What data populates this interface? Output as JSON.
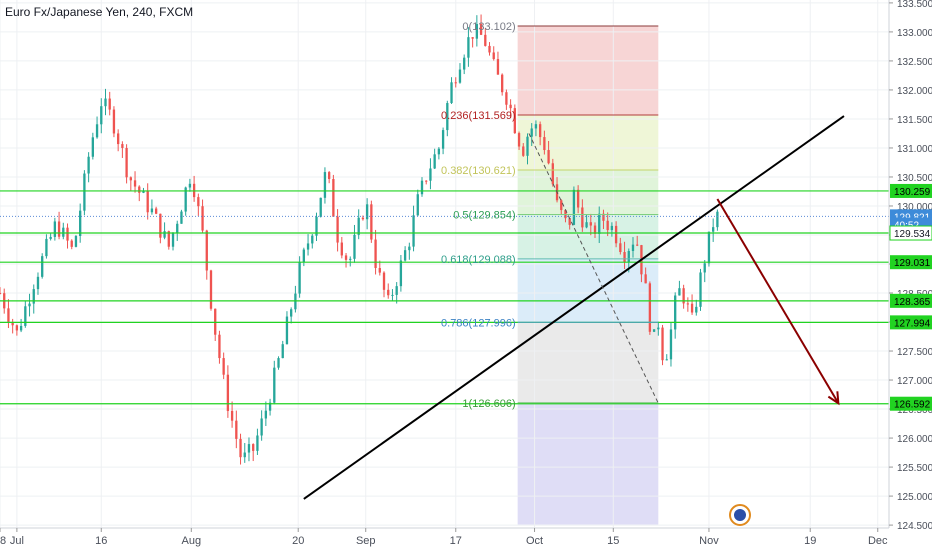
{
  "header": {
    "title": "Euro Fx/Japanese Yen, 240, FXCM"
  },
  "colors": {
    "up": "#26a69a",
    "down": "#ef5350",
    "hline": "#21d321",
    "trend": "#000000",
    "arrow": "#8b0000",
    "price_line": "#5b8bd6"
  },
  "chart_data": {
    "type": "candlestick",
    "title": "Euro Fx/Japanese Yen, 240, FXCM",
    "ylim": [
      124.45,
      133.55
    ],
    "y_ticks": [
      124.5,
      125.0,
      125.5,
      126.0,
      126.5,
      127.0,
      127.5,
      128.0,
      128.5,
      129.0,
      129.5,
      130.0,
      130.5,
      131.0,
      131.5,
      132.0,
      132.5,
      133.0,
      133.5
    ],
    "y_tick_labels": [
      "124.500",
      "125.000",
      "125.500",
      "126.000",
      "126.500",
      "127.000",
      "127.500",
      "128.000",
      "128.500",
      "129.000",
      "129.500",
      "130.000",
      "130.500",
      "131.000",
      "131.500",
      "132.000",
      "132.500",
      "133.000",
      "133.500"
    ],
    "x_labels": [
      "28",
      "Jul",
      "16",
      "Aug",
      "20",
      "Sep",
      "17",
      "Oct",
      "15",
      "Nov",
      "19",
      "Dec"
    ],
    "x_label_days": [
      -3,
      0,
      15,
      31,
      50,
      62,
      78,
      92,
      106,
      123,
      141,
      153
    ],
    "x_range_days": [
      -3,
      155
    ],
    "path_days": [
      -3,
      0,
      3,
      7,
      10,
      13,
      15,
      17,
      20,
      24,
      27,
      31,
      33,
      35,
      37,
      38,
      40,
      42,
      44,
      47,
      50,
      53,
      55,
      57,
      59,
      62,
      64,
      66,
      68,
      70,
      71,
      73,
      75,
      77,
      79,
      81,
      83,
      85,
      87,
      88,
      89,
      90,
      91,
      92,
      94,
      96,
      98,
      99,
      100,
      102,
      104,
      106,
      108,
      110,
      112,
      113,
      114,
      115,
      116,
      117,
      118,
      120,
      122,
      123,
      124,
      125
    ],
    "path_prices": [
      128.5,
      127.8,
      128.7,
      129.7,
      129.2,
      131.0,
      131.8,
      131.5,
      130.5,
      129.9,
      129.3,
      130.6,
      129.5,
      128.0,
      126.8,
      126.4,
      125.6,
      125.8,
      126.4,
      127.5,
      128.8,
      129.8,
      130.6,
      129.5,
      129.0,
      130.1,
      128.9,
      128.3,
      128.9,
      129.5,
      130.0,
      130.6,
      131.0,
      132.0,
      132.6,
      133.0,
      132.9,
      132.3,
      131.9,
      131.6,
      131.2,
      131.0,
      131.3,
      131.4,
      131.0,
      130.0,
      129.6,
      130.2,
      129.9,
      129.5,
      129.8,
      129.6,
      129.2,
      129.5,
      128.4,
      127.6,
      128.0,
      127.3,
      127.7,
      128.3,
      128.6,
      128.0,
      129.0,
      129.4,
      129.8,
      129.82
    ],
    "fib": {
      "high": 133.102,
      "low": 126.606,
      "start_day": 89,
      "end_day": 114,
      "levels": [
        {
          "ratio": 0,
          "value": 133.102,
          "label": "0(133.102)"
        },
        {
          "ratio": 0.236,
          "value": 131.569,
          "label": "0.236(131.569)"
        },
        {
          "ratio": 0.382,
          "value": 130.621,
          "label": "0.382(130.621)"
        },
        {
          "ratio": 0.5,
          "value": 129.854,
          "label": "0.5(129.854)"
        },
        {
          "ratio": 0.618,
          "value": 129.088,
          "label": "0.618(129.088)"
        },
        {
          "ratio": 0.786,
          "value": 127.996,
          "label": "0.786(127.996)"
        },
        {
          "ratio": 1,
          "value": 126.606,
          "label": "1(126.606)"
        }
      ],
      "bands": [
        {
          "from": 133.102,
          "to": 131.569,
          "color": "#f4c7c7"
        },
        {
          "from": 131.569,
          "to": 130.621,
          "color": "#e9f3c9"
        },
        {
          "from": 130.621,
          "to": 129.854,
          "color": "#d5f0cd"
        },
        {
          "from": 129.854,
          "to": 129.088,
          "color": "#c9eedc"
        },
        {
          "from": 129.088,
          "to": 127.996,
          "color": "#cfe6f7"
        },
        {
          "from": 127.996,
          "to": 126.606,
          "color": "#e3e3e3"
        },
        {
          "from": 126.606,
          "to": 124.5,
          "color": "#d4d2f3"
        }
      ],
      "level_colors": [
        "#8b3a3a",
        "#b23b3b",
        "#c5d36a",
        "#7fcf7f",
        "#5fbdb0",
        "#5a9bd8",
        "#5fbf5f"
      ],
      "label_colors": [
        "#787b86",
        "#b22222",
        "#c2c45a",
        "#2e9e55",
        "#2e9e8a",
        "#3b82c4",
        "#3a9a3a"
      ]
    },
    "horizontal_levels": [
      130.259,
      129.534,
      129.031,
      128.365,
      127.994,
      126.592
    ],
    "price_labels": [
      {
        "value": 130.259,
        "text": "130.259",
        "style": "green"
      },
      {
        "value": 129.821,
        "text": "129.821",
        "style": "blue"
      },
      {
        "value": 129.68,
        "text": "40:52",
        "style": "blue"
      },
      {
        "value": 129.534,
        "text": "129.534",
        "style": "white"
      },
      {
        "value": 129.031,
        "text": "129.031",
        "style": "green"
      },
      {
        "value": 128.365,
        "text": "128.365",
        "style": "green"
      },
      {
        "value": 127.994,
        "text": "127.994",
        "style": "green"
      },
      {
        "value": 126.592,
        "text": "126.592",
        "style": "green"
      }
    ],
    "current_price": 129.821,
    "trendline": {
      "x1_day": 51,
      "y1": 124.95,
      "x2_day": 147,
      "y2": 131.55
    },
    "arrow": {
      "x1_day": 124.5,
      "y1": 130.12,
      "x2_day": 146,
      "y2": 126.6
    },
    "dashed_line": {
      "x1_day": 91,
      "y1": 131.25,
      "x2_day": 114,
      "y2": 126.6
    }
  }
}
